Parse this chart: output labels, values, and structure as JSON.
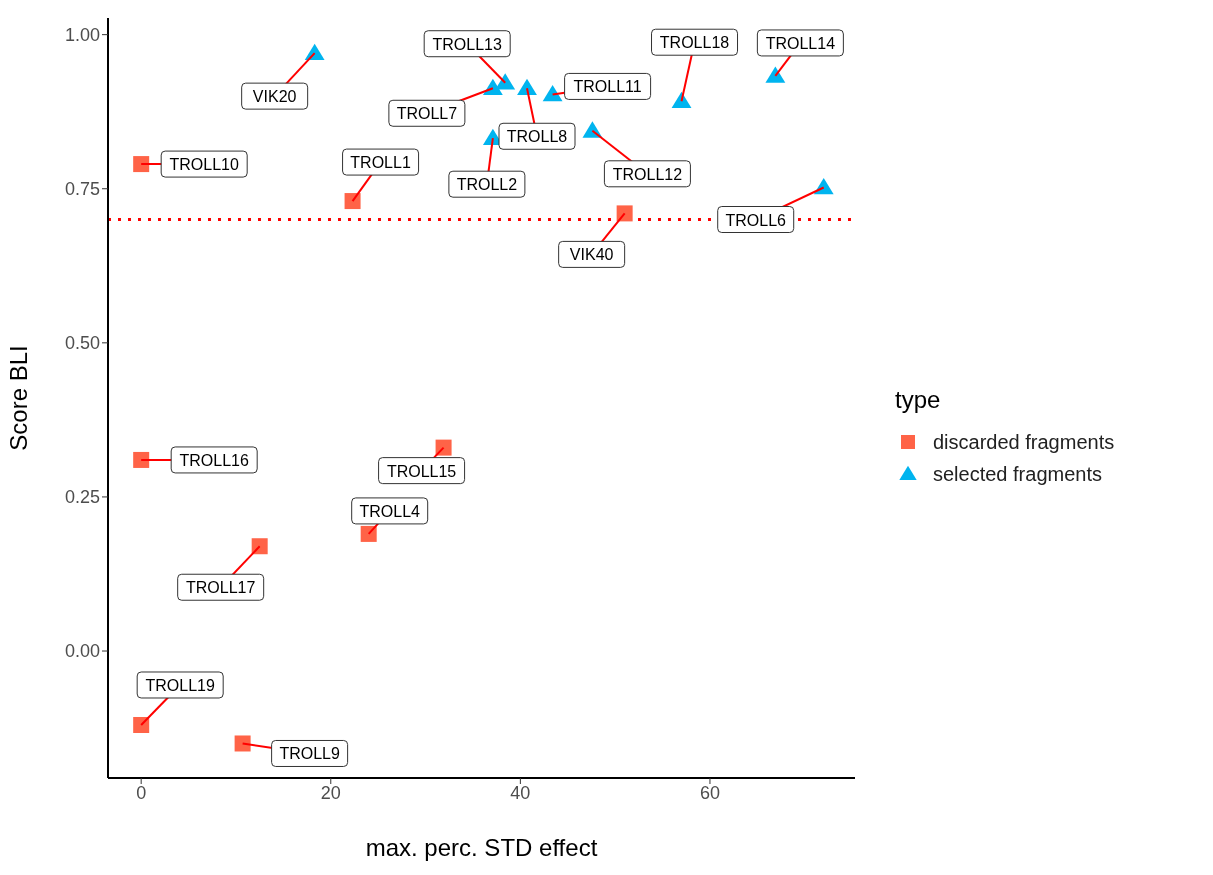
{
  "chart_data": {
    "type": "scatter",
    "xlabel": "max. perc. STD effect",
    "ylabel": "Score BLI",
    "legend_title": "type",
    "legend": "right",
    "grid": false,
    "xlim": [
      -3.5,
      75.3
    ],
    "ylim": [
      -0.206,
      1.027
    ],
    "xticks": [
      0,
      20,
      40,
      60
    ],
    "yticks": [
      {
        "value": 0,
        "label": "0.00"
      },
      {
        "value": 0.25,
        "label": "0.25"
      },
      {
        "value": 0.5,
        "label": "0.50"
      },
      {
        "value": 0.75,
        "label": "0.75"
      },
      {
        "value": 1,
        "label": "1.00"
      }
    ],
    "series": [
      {
        "name": "discarded fragments",
        "color": "#ff6347",
        "marker": "square",
        "x": [
          0,
          22.3,
          51.0,
          0,
          31.9,
          24.0,
          12.5,
          0,
          10.7
        ],
        "values": [
          0.79,
          0.73,
          0.71,
          0.31,
          0.33,
          0.19,
          0.17,
          -0.12,
          -0.15
        ]
      },
      {
        "name": "selected fragments",
        "color": "#00b4ef",
        "marker": "triangle",
        "x": [
          18.3,
          37.1,
          38.4,
          40.7,
          43.4,
          37.1,
          47.6,
          57.0,
          66.9,
          72.0
        ],
        "values": [
          0.97,
          0.913,
          0.922,
          0.913,
          0.903,
          0.832,
          0.844,
          0.892,
          0.933,
          0.752
        ]
      }
    ],
    "ref_lines": [
      {
        "axis": "y",
        "value": 0.7,
        "color": "#ff0000",
        "line_style": "dotted"
      }
    ],
    "annotations": [
      {
        "text": "TROLL10",
        "x": 0,
        "y": 0.79
      },
      {
        "text": "TROLL1",
        "x": 22.3,
        "y": 0.73
      },
      {
        "text": "VIK40",
        "x": 51.0,
        "y": 0.71
      },
      {
        "text": "TROLL16",
        "x": 0,
        "y": 0.31
      },
      {
        "text": "TROLL15",
        "x": 31.9,
        "y": 0.33
      },
      {
        "text": "TROLL4",
        "x": 24.0,
        "y": 0.19
      },
      {
        "text": "TROLL17",
        "x": 12.5,
        "y": 0.17
      },
      {
        "text": "TROLL19",
        "x": 0,
        "y": -0.12
      },
      {
        "text": "TROLL9",
        "x": 10.7,
        "y": -0.15
      },
      {
        "text": "VIK20",
        "x": 18.3,
        "y": 0.97
      },
      {
        "text": "TROLL7",
        "x": 37.1,
        "y": 0.913
      },
      {
        "text": "TROLL13",
        "x": 38.4,
        "y": 0.922
      },
      {
        "text": "TROLL8",
        "x": 40.7,
        "y": 0.913
      },
      {
        "text": "TROLL11",
        "x": 43.4,
        "y": 0.903
      },
      {
        "text": "TROLL2",
        "x": 37.1,
        "y": 0.832
      },
      {
        "text": "TROLL12",
        "x": 47.6,
        "y": 0.844
      },
      {
        "text": "TROLL18",
        "x": 57.0,
        "y": 0.892
      },
      {
        "text": "TROLL14",
        "x": 66.9,
        "y": 0.933
      },
      {
        "text": "TROLL6",
        "x": 72.0,
        "y": 0.752
      }
    ]
  }
}
